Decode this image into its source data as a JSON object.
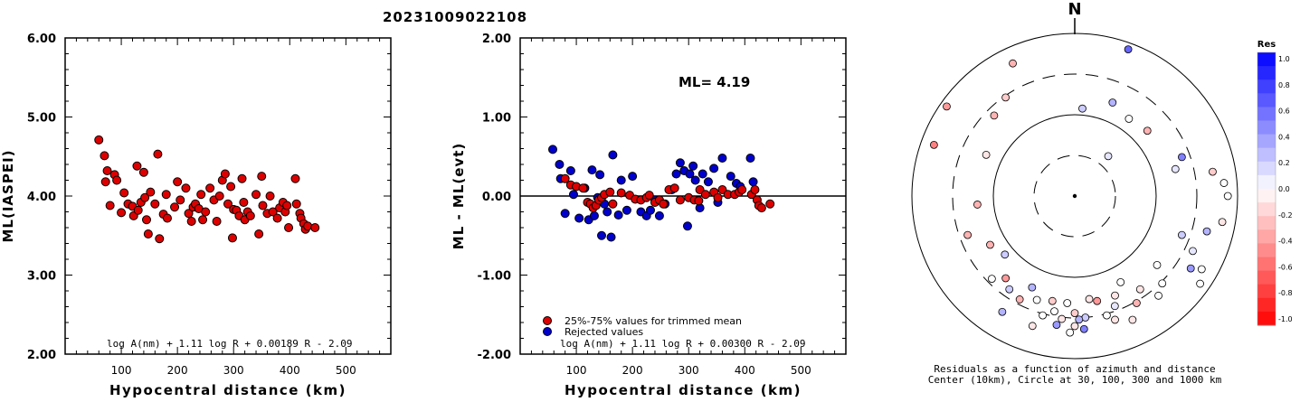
{
  "event_id": "20231009022108",
  "chart_data": [
    {
      "type": "scatter",
      "xlabel": "Hypocentral distance (km)",
      "ylabel": "ML(IASPEI)",
      "xlim": [
        0,
        580
      ],
      "ylim": [
        2.0,
        6.0
      ],
      "x_ticks": [
        "100",
        "200",
        "300",
        "400",
        "500"
      ],
      "y_ticks": [
        "2.00",
        "3.00",
        "4.00",
        "5.00",
        "6.00"
      ],
      "formula": "log A(nm) + 1.11 log R + 0.00189 R - 2.09",
      "point_color": "#dd0000",
      "points": [
        [
          60,
          4.71
        ],
        [
          70,
          4.51
        ],
        [
          75,
          4.32
        ],
        [
          72,
          4.18
        ],
        [
          80,
          3.88
        ],
        [
          88,
          4.27
        ],
        [
          92,
          4.2
        ],
        [
          100,
          3.79
        ],
        [
          105,
          4.04
        ],
        [
          112,
          3.9
        ],
        [
          120,
          3.87
        ],
        [
          122,
          3.75
        ],
        [
          128,
          4.38
        ],
        [
          130,
          3.82
        ],
        [
          135,
          3.92
        ],
        [
          140,
          4.3
        ],
        [
          142,
          3.98
        ],
        [
          145,
          3.7
        ],
        [
          148,
          3.52
        ],
        [
          152,
          4.05
        ],
        [
          160,
          3.9
        ],
        [
          165,
          4.53
        ],
        [
          168,
          3.46
        ],
        [
          175,
          3.77
        ],
        [
          180,
          4.02
        ],
        [
          182,
          3.72
        ],
        [
          195,
          3.86
        ],
        [
          200,
          4.18
        ],
        [
          205,
          3.95
        ],
        [
          215,
          4.1
        ],
        [
          220,
          3.78
        ],
        [
          225,
          3.68
        ],
        [
          228,
          3.86
        ],
        [
          232,
          3.9
        ],
        [
          238,
          3.84
        ],
        [
          242,
          4.02
        ],
        [
          245,
          3.7
        ],
        [
          250,
          3.8
        ],
        [
          258,
          4.1
        ],
        [
          265,
          3.95
        ],
        [
          270,
          3.68
        ],
        [
          275,
          4.0
        ],
        [
          280,
          4.2
        ],
        [
          285,
          4.28
        ],
        [
          290,
          3.9
        ],
        [
          295,
          4.12
        ],
        [
          298,
          3.47
        ],
        [
          300,
          3.83
        ],
        [
          305,
          3.82
        ],
        [
          310,
          3.75
        ],
        [
          315,
          4.22
        ],
        [
          318,
          3.92
        ],
        [
          320,
          3.7
        ],
        [
          325,
          3.8
        ],
        [
          330,
          3.75
        ],
        [
          340,
          4.02
        ],
        [
          345,
          3.52
        ],
        [
          350,
          4.25
        ],
        [
          352,
          3.88
        ],
        [
          360,
          3.78
        ],
        [
          365,
          4.0
        ],
        [
          370,
          3.8
        ],
        [
          378,
          3.72
        ],
        [
          382,
          3.85
        ],
        [
          388,
          3.92
        ],
        [
          392,
          3.8
        ],
        [
          395,
          3.88
        ],
        [
          398,
          3.6
        ],
        [
          410,
          4.22
        ],
        [
          412,
          3.9
        ],
        [
          418,
          3.78
        ],
        [
          420,
          3.72
        ],
        [
          425,
          3.65
        ],
        [
          428,
          3.58
        ],
        [
          432,
          3.62
        ],
        [
          445,
          3.6
        ]
      ]
    },
    {
      "type": "scatter",
      "xlabel": "Hypocentral distance (km)",
      "ylabel": "ML - ML(evt)",
      "xlim": [
        0,
        580
      ],
      "ylim": [
        -2.0,
        2.0
      ],
      "x_ticks": [
        "100",
        "200",
        "300",
        "400",
        "500"
      ],
      "y_ticks": [
        "-2.00",
        "-1.00",
        "0.00",
        "1.00",
        "2.00"
      ],
      "annotation": "ML= 4.19",
      "formula": "log A(nm) + 1.11 log R + 0.00300 R - 2.09",
      "legend": [
        {
          "label": "25%-75% values for trimmed mean",
          "color": "#dd0000"
        },
        {
          "label": "Rejected values",
          "color": "#0000cc"
        }
      ],
      "trimmed_points": [
        [
          80,
          0.22
        ],
        [
          90,
          0.14
        ],
        [
          100,
          0.12
        ],
        [
          112,
          0.1
        ],
        [
          120,
          -0.08
        ],
        [
          125,
          -0.1
        ],
        [
          130,
          -0.15
        ],
        [
          135,
          -0.12
        ],
        [
          140,
          -0.05
        ],
        [
          145,
          -0.02
        ],
        [
          150,
          0.02
        ],
        [
          160,
          0.05
        ],
        [
          165,
          -0.1
        ],
        [
          180,
          0.04
        ],
        [
          195,
          0.01
        ],
        [
          205,
          -0.04
        ],
        [
          215,
          -0.05
        ],
        [
          225,
          -0.02
        ],
        [
          230,
          0.01
        ],
        [
          240,
          -0.08
        ],
        [
          248,
          -0.05
        ],
        [
          255,
          -0.1
        ],
        [
          265,
          0.08
        ],
        [
          275,
          0.1
        ],
        [
          285,
          -0.05
        ],
        [
          300,
          -0.02
        ],
        [
          310,
          -0.05
        ],
        [
          318,
          -0.06
        ],
        [
          320,
          0.08
        ],
        [
          330,
          0.02
        ],
        [
          345,
          0.05
        ],
        [
          352,
          -0.02
        ],
        [
          360,
          0.08
        ],
        [
          370,
          0.02
        ],
        [
          382,
          0.02
        ],
        [
          390,
          0.05
        ],
        [
          395,
          0.08
        ],
        [
          412,
          0.02
        ],
        [
          418,
          0.08
        ],
        [
          422,
          -0.05
        ],
        [
          425,
          -0.12
        ],
        [
          430,
          -0.15
        ],
        [
          445,
          -0.1
        ]
      ],
      "rejected_points": [
        [
          58,
          0.59
        ],
        [
          70,
          0.4
        ],
        [
          72,
          0.22
        ],
        [
          80,
          -0.22
        ],
        [
          90,
          0.32
        ],
        [
          95,
          0.02
        ],
        [
          105,
          -0.28
        ],
        [
          115,
          0.1
        ],
        [
          122,
          -0.3
        ],
        [
          128,
          0.33
        ],
        [
          132,
          -0.25
        ],
        [
          138,
          -0.02
        ],
        [
          142,
          0.27
        ],
        [
          145,
          -0.5
        ],
        [
          150,
          -0.1
        ],
        [
          155,
          -0.2
        ],
        [
          162,
          -0.52
        ],
        [
          165,
          0.52
        ],
        [
          175,
          -0.24
        ],
        [
          180,
          0.2
        ],
        [
          190,
          -0.18
        ],
        [
          200,
          0.25
        ],
        [
          215,
          -0.2
        ],
        [
          225,
          -0.25
        ],
        [
          232,
          -0.18
        ],
        [
          240,
          -0.05
        ],
        [
          248,
          -0.25
        ],
        [
          258,
          -0.1
        ],
        [
          270,
          0.08
        ],
        [
          278,
          0.28
        ],
        [
          285,
          0.42
        ],
        [
          292,
          0.32
        ],
        [
          298,
          -0.38
        ],
        [
          302,
          0.28
        ],
        [
          308,
          0.38
        ],
        [
          312,
          0.2
        ],
        [
          320,
          -0.15
        ],
        [
          325,
          0.28
        ],
        [
          335,
          0.18
        ],
        [
          345,
          0.35
        ],
        [
          352,
          -0.08
        ],
        [
          360,
          0.48
        ],
        [
          375,
          0.25
        ],
        [
          385,
          0.16
        ],
        [
          392,
          0.12
        ],
        [
          410,
          0.48
        ],
        [
          415,
          0.18
        ]
      ]
    },
    {
      "type": "scatter",
      "north_label": "N",
      "caption": "Residuals as a function of azimuth and distance",
      "subcaption": "Center (10km), Circle at 30, 100, 300 and 1000 km",
      "colorbar_title": "Res",
      "colorbar_ticks": [
        "1.0",
        "0.8",
        "0.6",
        "0.4",
        "0.2",
        "0.0",
        "-0.2",
        "-0.4",
        "-0.6",
        "-0.8",
        "-1.0"
      ],
      "colorbar_range": [
        -1.0,
        1.0
      ],
      "points_az_dist_res": [
        [
          20,
          480,
          0.6
        ],
        [
          5,
          270,
          0.2
        ],
        [
          22,
          310,
          0.3
        ],
        [
          35,
          290,
          0.0
        ],
        [
          40,
          160,
          0.1
        ],
        [
          48,
          300,
          -0.3
        ],
        [
          70,
          350,
          0.5
        ],
        [
          75,
          320,
          0.1
        ],
        [
          80,
          430,
          -0.2
        ],
        [
          85,
          460,
          0.0
        ],
        [
          90,
          470,
          0.0
        ],
        [
          100,
          460,
          -0.1
        ],
        [
          105,
          420,
          0.3
        ],
        [
          110,
          350,
          0.2
        ],
        [
          115,
          400,
          0.1
        ],
        [
          120,
          450,
          0.0
        ],
        [
          122,
          420,
          0.4
        ],
        [
          125,
          470,
          0.0
        ],
        [
          130,
          330,
          0.0
        ],
        [
          135,
          380,
          0.0
        ],
        [
          140,
          400,
          0.0
        ],
        [
          145,
          350,
          -0.1
        ],
        [
          150,
          380,
          -0.3
        ],
        [
          152,
          300,
          0.0
        ],
        [
          155,
          420,
          -0.1
        ],
        [
          158,
          330,
          -0.1
        ],
        [
          160,
          360,
          0.1
        ],
        [
          162,
          400,
          -0.1
        ],
        [
          165,
          380,
          0.0
        ],
        [
          168,
          330,
          -0.4
        ],
        [
          172,
          320,
          -0.1
        ],
        [
          175,
          375,
          0.2
        ],
        [
          176,
          410,
          0.5
        ],
        [
          178,
          380,
          0.3
        ],
        [
          180,
          400,
          -0.1
        ],
        [
          180,
          360,
          -0.2
        ],
        [
          182,
          420,
          0.0
        ],
        [
          184,
          330,
          0.0
        ],
        [
          186,
          380,
          -0.1
        ],
        [
          188,
          400,
          0.4
        ],
        [
          190,
          360,
          0.0
        ],
        [
          192,
          330,
          -0.2
        ],
        [
          195,
          380,
          0.0
        ],
        [
          198,
          420,
          -0.1
        ],
        [
          200,
          340,
          0.0
        ],
        [
          205,
          310,
          0.3
        ],
        [
          208,
          360,
          -0.3
        ],
        [
          212,
          420,
          0.3
        ],
        [
          215,
          350,
          0.2
        ],
        [
          220,
          330,
          -0.4
        ],
        [
          225,
          360,
          0.0
        ],
        [
          230,
          280,
          0.2
        ],
        [
          240,
          300,
          -0.3
        ],
        [
          250,
          350,
          -0.3
        ],
        [
          265,
          300,
          -0.3
        ],
        [
          290,
          460,
          -0.5
        ],
        [
          295,
          300,
          -0.1
        ],
        [
          305,
          480,
          -0.4
        ],
        [
          315,
          350,
          -0.3
        ],
        [
          325,
          370,
          -0.2
        ],
        [
          335,
          450,
          -0.3
        ]
      ]
    }
  ]
}
